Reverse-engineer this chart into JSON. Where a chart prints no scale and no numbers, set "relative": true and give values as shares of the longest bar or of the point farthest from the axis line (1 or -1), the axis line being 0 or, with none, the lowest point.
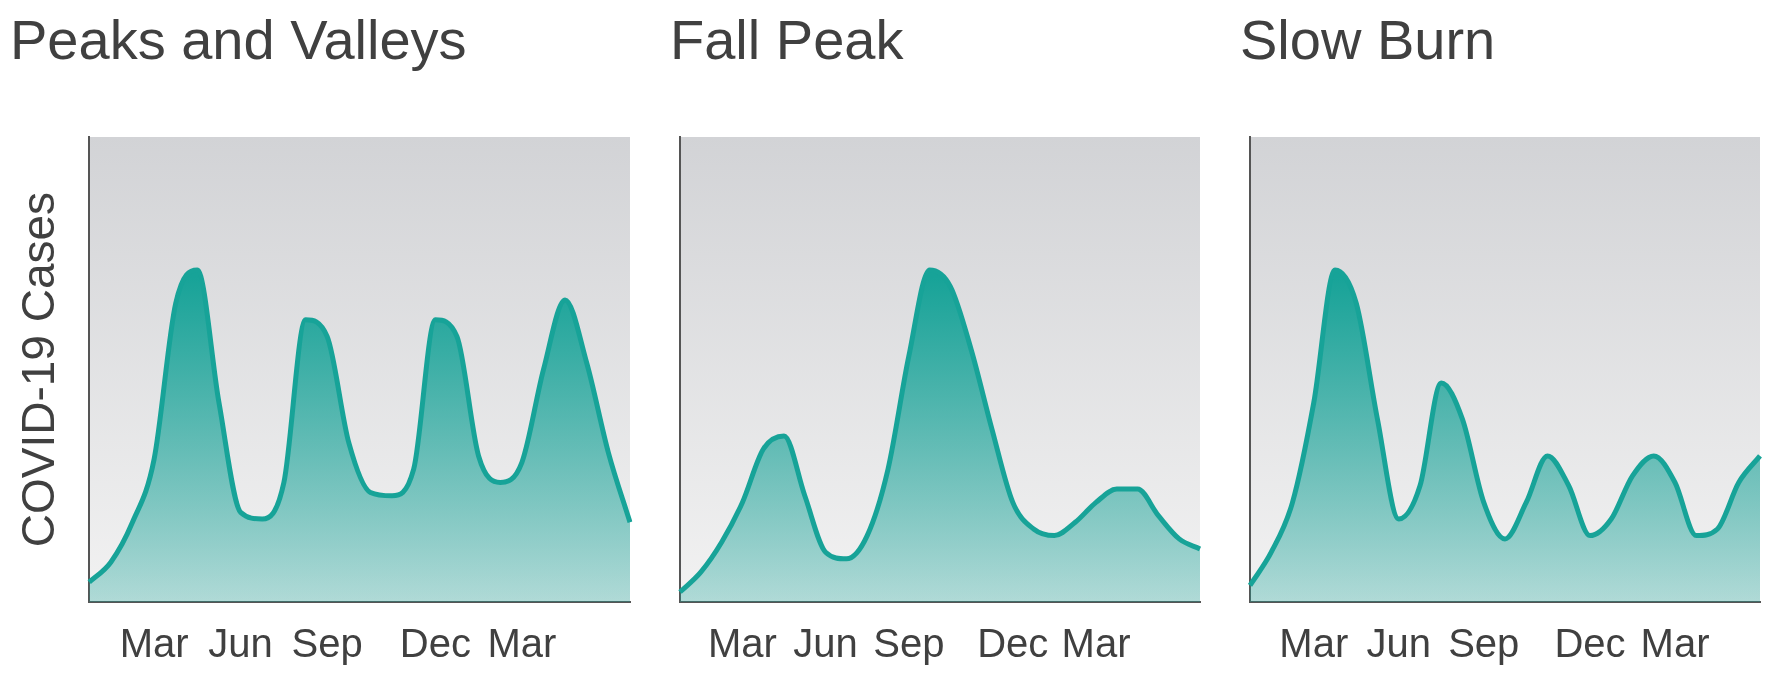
{
  "chart_data": [
    {
      "type": "area",
      "title": "Peaks and Valleys",
      "ylabel": "COVID-19 Cases",
      "relative": true,
      "tick_labels": "x",
      "categories": [
        null,
        null,
        null,
        "Mar",
        null,
        null,
        null,
        "Jun",
        null,
        null,
        null,
        "Sep",
        null,
        null,
        null,
        null,
        "Dec",
        null,
        null,
        null,
        "Mar",
        null,
        null,
        null,
        null,
        null
      ],
      "series": [
        {
          "color": "#17a398",
          "values": [
            0.06,
            0.12,
            0.24,
            0.43,
            0.9,
            1,
            0.6,
            0.27,
            0.25,
            0.36,
            0.85,
            0.8,
            0.48,
            0.33,
            0.32,
            0.4,
            0.85,
            0.8,
            0.44,
            0.36,
            0.42,
            0.7,
            0.91,
            0.72,
            0.45,
            0.24
          ]
        }
      ]
    },
    {
      "type": "area",
      "title": "Fall Peak",
      "relative": true,
      "tick_labels": "x",
      "categories": [
        null,
        null,
        null,
        "Mar",
        null,
        null,
        null,
        "Jun",
        null,
        null,
        null,
        "Sep",
        null,
        null,
        null,
        null,
        "Dec",
        null,
        null,
        null,
        "Mar",
        null,
        null,
        null,
        null,
        null
      ],
      "series": [
        {
          "color": "#17a398",
          "values": [
            0.03,
            0.09,
            0.18,
            0.3,
            0.46,
            0.5,
            0.32,
            0.15,
            0.13,
            0.2,
            0.4,
            0.74,
            1,
            0.95,
            0.76,
            0.52,
            0.3,
            0.22,
            0.2,
            0.24,
            0.3,
            0.34,
            0.34,
            0.26,
            0.19,
            0.16
          ]
        }
      ]
    },
    {
      "type": "area",
      "title": "Slow Burn",
      "relative": true,
      "tick_labels": "x",
      "categories": [
        null,
        null,
        null,
        "Mar",
        null,
        null,
        null,
        "Jun",
        null,
        null,
        null,
        "Sep",
        null,
        null,
        null,
        null,
        "Dec",
        null,
        null,
        null,
        "Mar",
        null,
        null,
        null,
        null
      ],
      "series": [
        {
          "color": "#17a398",
          "values": [
            0.05,
            0.15,
            0.3,
            0.6,
            1,
            0.9,
            0.55,
            0.25,
            0.35,
            0.66,
            0.55,
            0.3,
            0.19,
            0.3,
            0.44,
            0.35,
            0.2,
            0.25,
            0.38,
            0.44,
            0.36,
            0.2,
            0.22,
            0.36,
            0.44
          ]
        }
      ]
    }
  ]
}
